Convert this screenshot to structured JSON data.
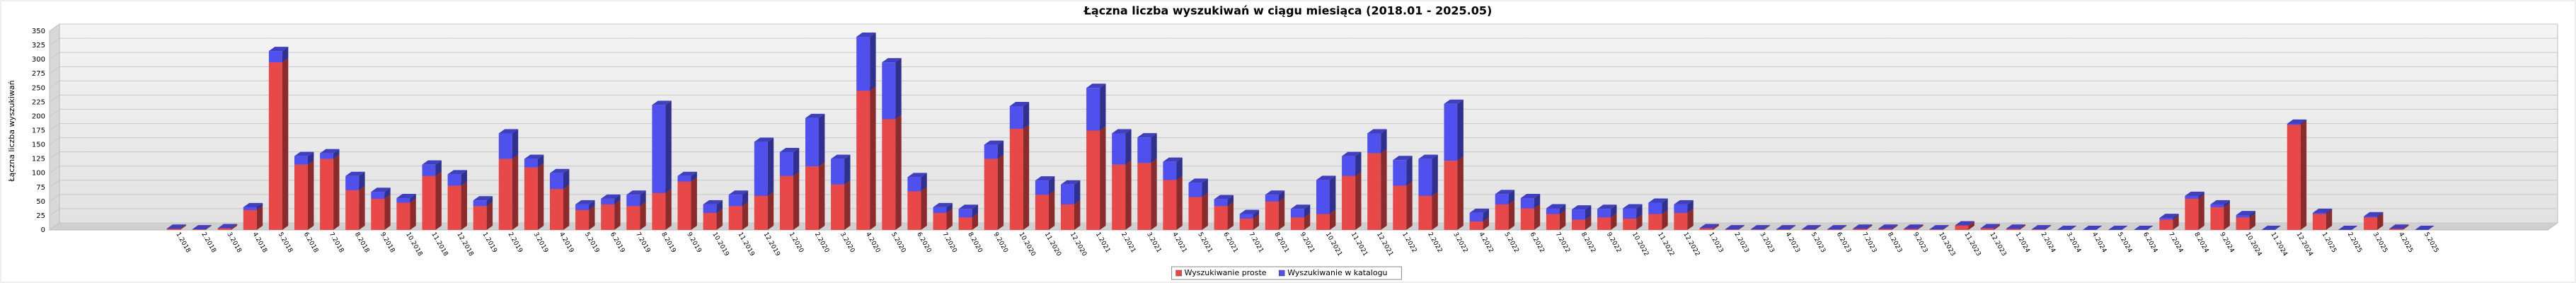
{
  "chart_data": {
    "type": "bar3d_stacked",
    "title": "Łączna liczba wyszukiwań w ciągu miesiąca (2018.01 - 2025.05)",
    "y_label": "Łączna liczba wyszukiwań",
    "categories": [
      "1.2018",
      "2.2018",
      "3.2018",
      "4.2018",
      "5.2018",
      "6.2018",
      "7.2018",
      "8.2018",
      "9.2018",
      "10.2018",
      "11.2018",
      "12.2018",
      "1.2019",
      "2.2019",
      "3.2019",
      "4.2019",
      "5.2019",
      "6.2019",
      "7.2019",
      "8.2019",
      "9.2019",
      "10.2019",
      "11.2019",
      "12.2019",
      "1.2020",
      "2.2020",
      "3.2020",
      "4.2020",
      "5.2020",
      "6.2020",
      "7.2020",
      "8.2020",
      "9.2020",
      "10.2020",
      "11.2020",
      "12.2020",
      "1.2021",
      "2.2021",
      "3.2021",
      "4.2021",
      "5.2021",
      "6.2021",
      "7.2021",
      "8.2021",
      "9.2021",
      "10.2021",
      "11.2021",
      "12.2021",
      "1.2022",
      "2.2022",
      "3.2022",
      "4.2022",
      "5.2022",
      "6.2022",
      "7.2022",
      "8.2022",
      "9.2022",
      "10.2022",
      "11.2022",
      "12.2022",
      "1.2023",
      "2.2023",
      "3.2023",
      "4.2023",
      "5.2023",
      "6.2023",
      "7.2023",
      "8.2023",
      "9.2023",
      "10.2023",
      "11.2023",
      "12.2023",
      "1.2024",
      "2.2024",
      "3.2024",
      "4.2024",
      "5.2024",
      "6.2024",
      "7.2024",
      "8.2024",
      "9.2024",
      "10.2024",
      "11.2024",
      "12.2024",
      "1.2025",
      "2.2025",
      "3.2025",
      "4.2025",
      "5.2025"
    ],
    "series": [
      {
        "name": "Wyszukiwanie proste",
        "color": "#e84848",
        "values": [
          2,
          1,
          3,
          35,
          295,
          115,
          125,
          70,
          55,
          48,
          95,
          78,
          42,
          125,
          110,
          72,
          35,
          45,
          42,
          65,
          85,
          30,
          42,
          60,
          95,
          112,
          80,
          245,
          195,
          68,
          30,
          22,
          125,
          178,
          62,
          45,
          175,
          115,
          118,
          88,
          58,
          42,
          20,
          50,
          22,
          28,
          95,
          135,
          78,
          60,
          122,
          15,
          45,
          38,
          28,
          18,
          22,
          20,
          28,
          30,
          3,
          1,
          1,
          1,
          1,
          1,
          2,
          2,
          2,
          1,
          8,
          3,
          2,
          1,
          0,
          0,
          0,
          0,
          18,
          55,
          40,
          22,
          0,
          185,
          28,
          0,
          22,
          2,
          0
        ]
      },
      {
        "name": "Wyszukiwanie w katalogu",
        "color": "#5050ee",
        "values": [
          0,
          0,
          0,
          5,
          20,
          15,
          10,
          25,
          12,
          8,
          20,
          20,
          10,
          45,
          15,
          28,
          10,
          10,
          20,
          155,
          10,
          15,
          20,
          95,
          42,
          85,
          45,
          95,
          100,
          25,
          10,
          15,
          25,
          40,
          25,
          35,
          75,
          55,
          45,
          32,
          25,
          12,
          8,
          12,
          15,
          60,
          35,
          35,
          45,
          65,
          100,
          15,
          18,
          18,
          10,
          18,
          15,
          18,
          20,
          15,
          0,
          0,
          0,
          0,
          0,
          0,
          0,
          0,
          0,
          0,
          0,
          0,
          0,
          0,
          0,
          0,
          0,
          0,
          3,
          5,
          5,
          4,
          0,
          2,
          2,
          0,
          2,
          0,
          0
        ]
      }
    ],
    "ylim": [
      0,
      350
    ],
    "yticks": [
      0,
      25,
      50,
      75,
      100,
      125,
      150,
      175,
      200,
      225,
      250,
      275,
      300,
      325,
      350
    ],
    "grid": true,
    "legend": "bottom"
  }
}
